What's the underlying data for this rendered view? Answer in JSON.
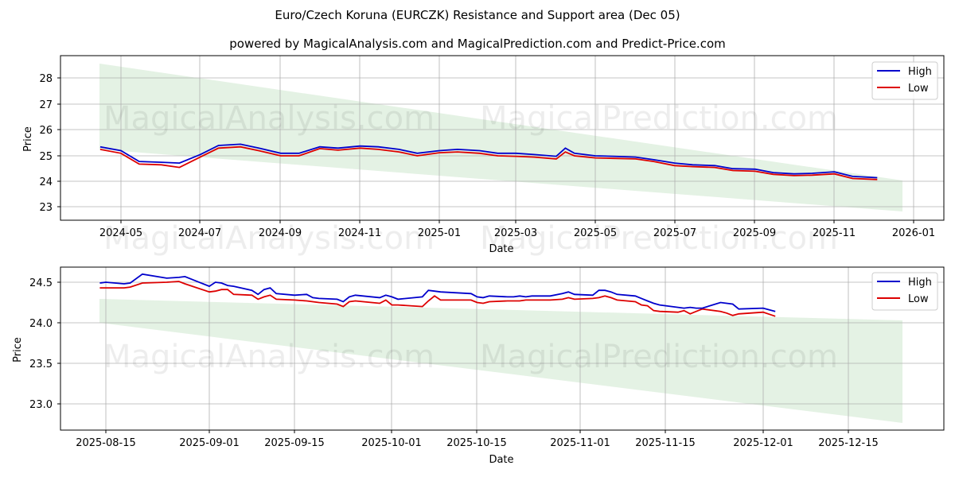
{
  "title": "Euro/Czech Koruna (EURCZK) Resistance and Support area (Dec 05)",
  "subtitle": "powered by MagicalAnalysis.com and MagicalPrediction.com and Predict-Price.com",
  "watermarks": [
    "MagicalAnalysis.com",
    "MagicalPrediction.com"
  ],
  "colors": {
    "high": "#0000cc",
    "low": "#dd0000",
    "band": "#d9ecd9"
  },
  "chart_data": [
    {
      "type": "line",
      "title": "Euro/Czech Koruna (EURCZK) Resistance and Support area (Dec 05)",
      "xlabel": "Date",
      "ylabel": "Price",
      "ylim": [
        22.5,
        28.9
      ],
      "yticks": [
        "23",
        "24",
        "25",
        "26",
        "27",
        "28"
      ],
      "xticks": [
        "2024-05",
        "2024-07",
        "2024-09",
        "2024-11",
        "2025-01",
        "2025-03",
        "2025-05",
        "2025-07",
        "2025-09",
        "2025-11",
        "2026-01"
      ],
      "legend": [
        "High",
        "Low"
      ],
      "legend_position": "upper right",
      "grid": true,
      "x": [
        "2024-04-15",
        "2024-05-01",
        "2024-05-15",
        "2024-06-01",
        "2024-06-15",
        "2024-07-01",
        "2024-07-15",
        "2024-08-01",
        "2024-08-15",
        "2024-09-01",
        "2024-09-15",
        "2024-10-01",
        "2024-10-15",
        "2024-11-01",
        "2024-11-15",
        "2024-12-01",
        "2024-12-15",
        "2025-01-01",
        "2025-01-15",
        "2025-02-01",
        "2025-02-15",
        "2025-03-01",
        "2025-03-15",
        "2025-04-01",
        "2025-04-08",
        "2025-04-15",
        "2025-05-01",
        "2025-05-15",
        "2025-06-01",
        "2025-06-15",
        "2025-07-01",
        "2025-07-15",
        "2025-08-01",
        "2025-08-15",
        "2025-09-01",
        "2025-09-15",
        "2025-10-01",
        "2025-10-15",
        "2025-11-01",
        "2025-11-15",
        "2025-12-04"
      ],
      "series": [
        {
          "name": "High",
          "values": [
            25.35,
            25.2,
            24.78,
            24.75,
            24.72,
            25.05,
            25.4,
            25.45,
            25.3,
            25.1,
            25.1,
            25.35,
            25.3,
            25.38,
            25.35,
            25.25,
            25.1,
            25.2,
            25.25,
            25.2,
            25.1,
            25.1,
            25.05,
            24.98,
            25.3,
            25.1,
            25.0,
            24.98,
            24.95,
            24.85,
            24.72,
            24.65,
            24.62,
            24.5,
            24.48,
            24.35,
            24.3,
            24.32,
            24.38,
            24.2,
            24.15
          ]
        },
        {
          "name": "Low",
          "values": [
            25.25,
            25.1,
            24.68,
            24.65,
            24.55,
            24.95,
            25.3,
            25.35,
            25.2,
            25.0,
            25.0,
            25.28,
            25.22,
            25.3,
            25.25,
            25.15,
            25.0,
            25.12,
            25.15,
            25.1,
            25.0,
            24.98,
            24.95,
            24.88,
            25.15,
            25.0,
            24.92,
            24.9,
            24.88,
            24.78,
            24.62,
            24.58,
            24.55,
            24.43,
            24.4,
            24.28,
            24.23,
            24.25,
            24.3,
            24.12,
            24.08
          ]
        }
      ],
      "band": {
        "x_start": "2024-04-15",
        "x_end": "2025-12-25",
        "upper": [
          28.55,
          24.05
        ],
        "lower": [
          25.25,
          22.8
        ]
      }
    },
    {
      "type": "line",
      "xlabel": "Date",
      "ylabel": "Price",
      "ylim": [
        22.65,
        24.68
      ],
      "yticks": [
        "23.0",
        "23.5",
        "24.0",
        "24.5"
      ],
      "xticks": [
        "2025-08-15",
        "2025-09-01",
        "2025-09-15",
        "2025-10-01",
        "2025-10-15",
        "2025-11-01",
        "2025-11-15",
        "2025-12-01",
        "2025-12-15"
      ],
      "legend": [
        "High",
        "Low"
      ],
      "legend_position": "upper right",
      "grid": true,
      "x": [
        "2025-08-14",
        "2025-08-15",
        "2025-08-18",
        "2025-08-19",
        "2025-08-21",
        "2025-08-25",
        "2025-08-27",
        "2025-08-28",
        "2025-09-01",
        "2025-09-02",
        "2025-09-03",
        "2025-09-04",
        "2025-09-05",
        "2025-09-08",
        "2025-09-09",
        "2025-09-10",
        "2025-09-11",
        "2025-09-12",
        "2025-09-15",
        "2025-09-17",
        "2025-09-18",
        "2025-09-19",
        "2025-09-22",
        "2025-09-23",
        "2025-09-24",
        "2025-09-25",
        "2025-09-29",
        "2025-09-30",
        "2025-10-01",
        "2025-10-02",
        "2025-10-06",
        "2025-10-07",
        "2025-10-08",
        "2025-10-09",
        "2025-10-14",
        "2025-10-15",
        "2025-10-16",
        "2025-10-17",
        "2025-10-20",
        "2025-10-21",
        "2025-10-22",
        "2025-10-23",
        "2025-10-24",
        "2025-10-27",
        "2025-10-29",
        "2025-10-30",
        "2025-10-31",
        "2025-11-03",
        "2025-11-04",
        "2025-11-05",
        "2025-11-06",
        "2025-11-07",
        "2025-11-10",
        "2025-11-11",
        "2025-11-12",
        "2025-11-13",
        "2025-11-14",
        "2025-11-17",
        "2025-11-18",
        "2025-11-19",
        "2025-11-20",
        "2025-11-21",
        "2025-11-24",
        "2025-11-25",
        "2025-11-26",
        "2025-11-27",
        "2025-12-01",
        "2025-12-03"
      ],
      "series": [
        {
          "name": "High",
          "values": [
            24.49,
            24.5,
            24.48,
            24.49,
            24.6,
            24.55,
            24.56,
            24.57,
            24.45,
            24.5,
            24.49,
            24.46,
            24.45,
            24.4,
            24.35,
            24.41,
            24.43,
            24.36,
            24.34,
            24.35,
            24.31,
            24.3,
            24.29,
            24.26,
            24.32,
            24.34,
            24.31,
            24.34,
            24.32,
            24.29,
            24.32,
            24.4,
            24.39,
            24.38,
            24.36,
            24.32,
            24.31,
            24.33,
            24.32,
            24.32,
            24.33,
            24.32,
            24.33,
            24.33,
            24.36,
            24.38,
            24.35,
            24.34,
            24.4,
            24.4,
            24.38,
            24.35,
            24.33,
            24.3,
            24.27,
            24.24,
            24.22,
            24.19,
            24.18,
            24.19,
            24.18,
            24.18,
            24.25,
            24.24,
            24.23,
            24.17,
            24.18,
            24.14
          ]
        },
        {
          "name": "Low",
          "values": [
            24.43,
            24.43,
            24.43,
            24.44,
            24.49,
            24.5,
            24.51,
            24.48,
            24.38,
            24.39,
            24.41,
            24.41,
            24.35,
            24.34,
            24.29,
            24.32,
            24.34,
            24.29,
            24.28,
            24.27,
            24.26,
            24.25,
            24.23,
            24.2,
            24.26,
            24.27,
            24.24,
            24.28,
            24.22,
            24.22,
            24.2,
            24.27,
            24.33,
            24.28,
            24.28,
            24.25,
            24.24,
            24.26,
            24.27,
            24.27,
            24.27,
            24.28,
            24.28,
            24.28,
            24.29,
            24.31,
            24.29,
            24.3,
            24.31,
            24.33,
            24.31,
            24.28,
            24.26,
            24.22,
            24.21,
            24.15,
            24.14,
            24.13,
            24.15,
            24.11,
            24.14,
            24.17,
            24.14,
            24.12,
            24.09,
            24.11,
            24.13,
            24.08
          ]
        }
      ],
      "band": {
        "x_start": "2025-08-14",
        "x_end": "2025-12-25",
        "upper": [
          24.29,
          24.03
        ],
        "lower": [
          24.0,
          22.77
        ]
      }
    }
  ]
}
